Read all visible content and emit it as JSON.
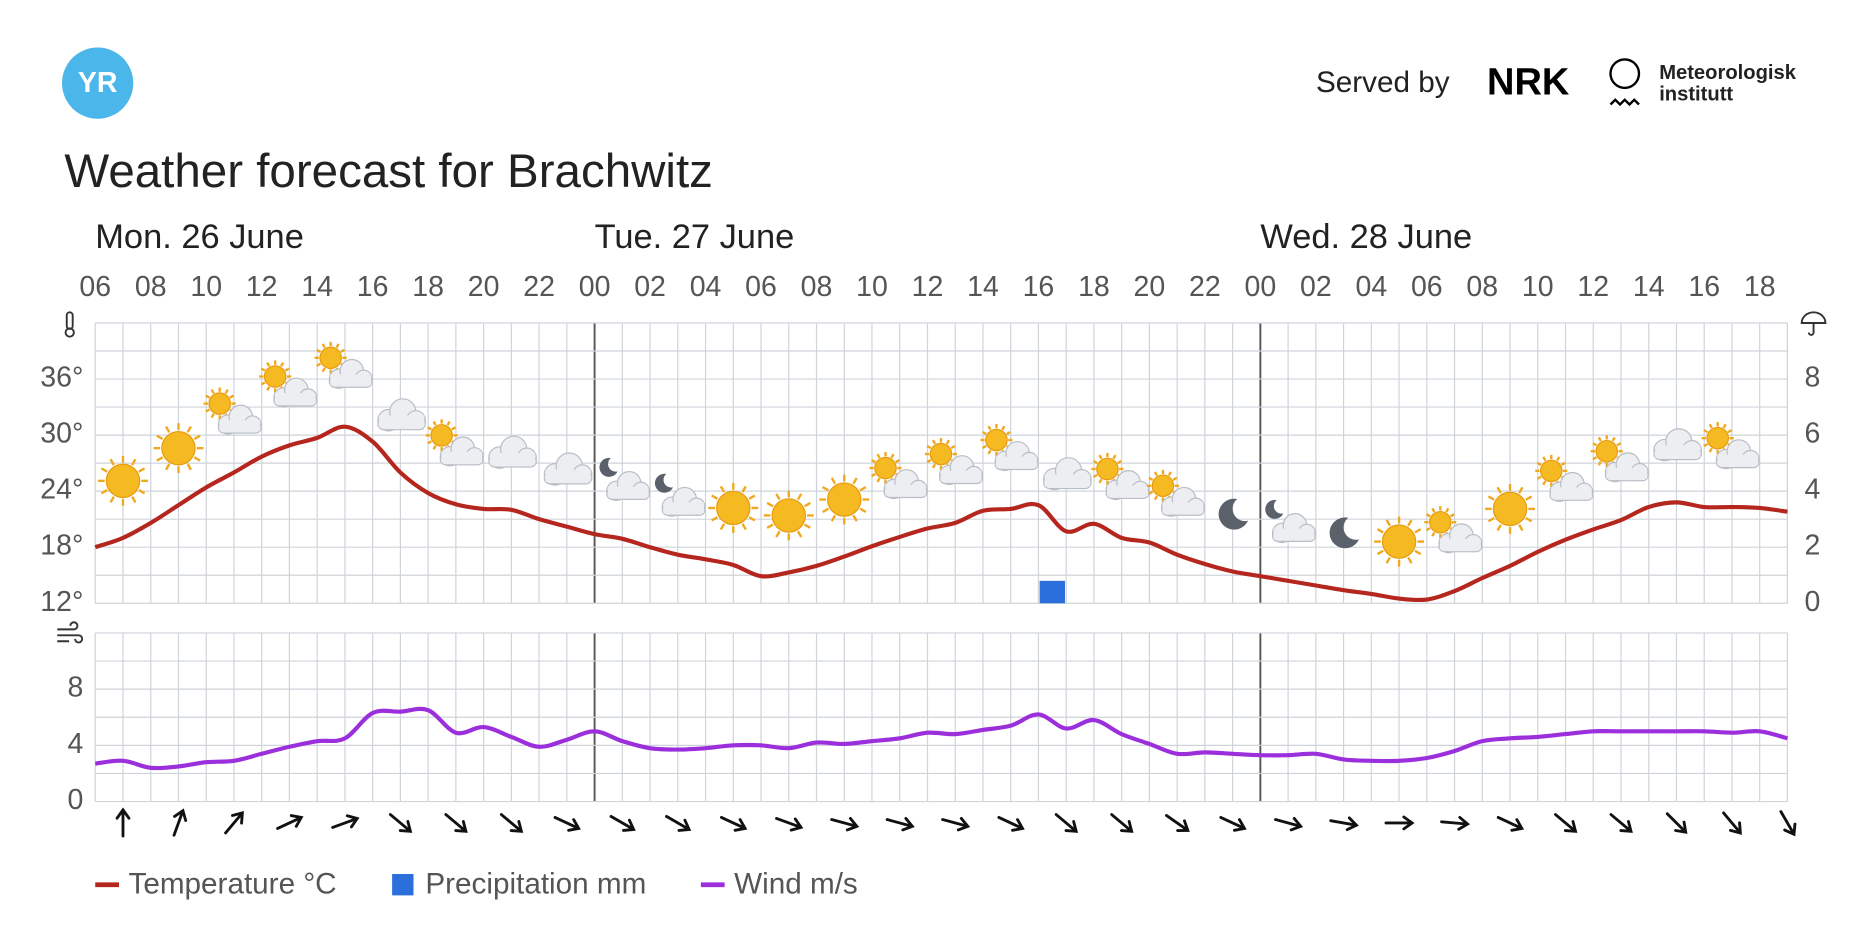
{
  "header": {
    "logo": "YR",
    "served_by": "Served by",
    "partner": "NRK",
    "institute_line1": "Meteorologisk",
    "institute_line2": "institutt"
  },
  "chart_data": {
    "type": "meteogram",
    "title": "Weather forecast for Brachwitz",
    "days": [
      "Mon. 26 June",
      "Tue. 27 June",
      "Wed. 28 June"
    ],
    "categories": [
      "06",
      null,
      "08",
      null,
      "10",
      null,
      "12",
      null,
      "14",
      null,
      "16",
      null,
      "18",
      null,
      "20",
      null,
      "22",
      null,
      "00",
      null,
      "02",
      null,
      "04",
      null,
      "06",
      null,
      "08",
      null,
      "10",
      null,
      "12",
      null,
      "14",
      null,
      "16",
      null,
      "18",
      null,
      "20",
      null,
      "22",
      null,
      "00",
      null,
      "02",
      null,
      "04",
      null,
      "06",
      null,
      "08",
      null,
      "10",
      null,
      "12",
      null,
      "14",
      null,
      "16",
      null,
      "18",
      null
    ],
    "series": [
      {
        "name": "Temperature °C",
        "color": "#b5261e",
        "values": [
          18.0,
          19.0,
          20.6,
          22.5,
          24.4,
          26.0,
          27.7,
          28.9,
          29.7,
          30.9,
          29.3,
          26.0,
          23.8,
          22.6,
          22.1,
          22.0,
          21.0,
          20.2,
          19.4,
          18.9,
          18.0,
          17.2,
          16.7,
          16.1,
          14.9,
          15.3,
          16.0,
          17.0,
          18.1,
          19.1,
          20.0,
          20.6,
          21.9,
          22.1,
          22.5,
          19.7,
          20.5,
          19.0,
          18.5,
          17.2,
          16.2,
          15.4,
          14.9,
          14.4,
          13.9,
          13.4,
          13.0,
          12.5,
          12.4,
          13.3,
          14.7,
          16.0,
          17.5,
          18.8,
          19.9,
          20.9,
          22.3,
          22.8,
          22.3,
          22.3,
          22.2,
          21.8
        ]
      },
      {
        "name": "Precipitation mm",
        "color": "#2a6fdb",
        "axis": "y2",
        "values": [
          0,
          0,
          0,
          0,
          0,
          0,
          0,
          0,
          0,
          0,
          0,
          0,
          0,
          0,
          0,
          0,
          0,
          0,
          0,
          0,
          0,
          0,
          0,
          0,
          0,
          0,
          0,
          0,
          0,
          0,
          0,
          0,
          0,
          0,
          0.8,
          0,
          0,
          0,
          0,
          0,
          0,
          0,
          0,
          0,
          0,
          0,
          0,
          0,
          0,
          0,
          0,
          0,
          0,
          0,
          0,
          0,
          0,
          0,
          0,
          0,
          0,
          0
        ]
      },
      {
        "name": "Wind m/s",
        "color": "#9b2fdb",
        "values": [
          2.7,
          2.9,
          2.4,
          2.5,
          2.8,
          2.9,
          3.4,
          3.9,
          4.3,
          4.5,
          6.3,
          6.4,
          6.5,
          4.9,
          5.3,
          4.6,
          3.9,
          4.4,
          5.0,
          4.3,
          3.8,
          3.7,
          3.8,
          4.0,
          4.0,
          3.8,
          4.2,
          4.1,
          4.3,
          4.5,
          4.9,
          4.8,
          5.1,
          5.4,
          6.2,
          5.2,
          5.8,
          4.8,
          4.1,
          3.4,
          3.5,
          3.4,
          3.3,
          3.3,
          3.4,
          3.0,
          2.9,
          2.9,
          3.1,
          3.6,
          4.3,
          4.5,
          4.6,
          4.8,
          5.0,
          5.0,
          5.0,
          5.0,
          5.0,
          4.9,
          5.0,
          4.5
        ]
      }
    ],
    "symbols": [
      null,
      "sun",
      null,
      "sun",
      null,
      "sun-cloud",
      null,
      "sun-cloud",
      null,
      "sun-cloud",
      null,
      "cloud",
      null,
      "sun-cloud",
      null,
      "cloud",
      null,
      "cloud",
      null,
      "moon-cloud",
      null,
      "moon-cloud",
      null,
      "sun",
      null,
      "sun",
      null,
      "sun",
      null,
      "sun-cloud",
      null,
      "sun-cloud",
      null,
      "sun-cloud",
      null,
      "cloud",
      null,
      "sun-cloud",
      null,
      "sun-cloud",
      null,
      "moon",
      null,
      "moon-cloud",
      null,
      "moon",
      null,
      "sun",
      null,
      "sun-cloud",
      null,
      "sun",
      null,
      "sun-cloud",
      null,
      "sun-cloud",
      null,
      "cloud",
      null,
      "sun-cloud",
      null,
      null
    ],
    "wind_direction": [
      null,
      0,
      null,
      20,
      null,
      40,
      null,
      65,
      null,
      70,
      null,
      130,
      null,
      130,
      null,
      130,
      null,
      115,
      null,
      120,
      null,
      120,
      null,
      115,
      null,
      110,
      null,
      105,
      null,
      105,
      null,
      105,
      null,
      115,
      null,
      130,
      null,
      130,
      null,
      125,
      null,
      115,
      null,
      105,
      null,
      100,
      null,
      90,
      null,
      95,
      null,
      115,
      null,
      130,
      null,
      130,
      null,
      135,
      null,
      140,
      null,
      150
    ],
    "ylim": [
      12,
      42
    ],
    "yticks": [
      {
        "value": 12,
        "label": "12°"
      },
      {
        "value": 18,
        "label": "18°"
      },
      {
        "value": 24,
        "label": "24°"
      },
      {
        "value": 30,
        "label": "30°"
      },
      {
        "value": 36,
        "label": "36°"
      }
    ],
    "y2lim": [
      0,
      10
    ],
    "y2ticks": [
      0,
      2,
      4,
      6,
      8
    ],
    "wind_ylim": [
      0,
      12
    ],
    "wind_yticks": [
      0,
      4,
      8
    ],
    "grid": true
  }
}
